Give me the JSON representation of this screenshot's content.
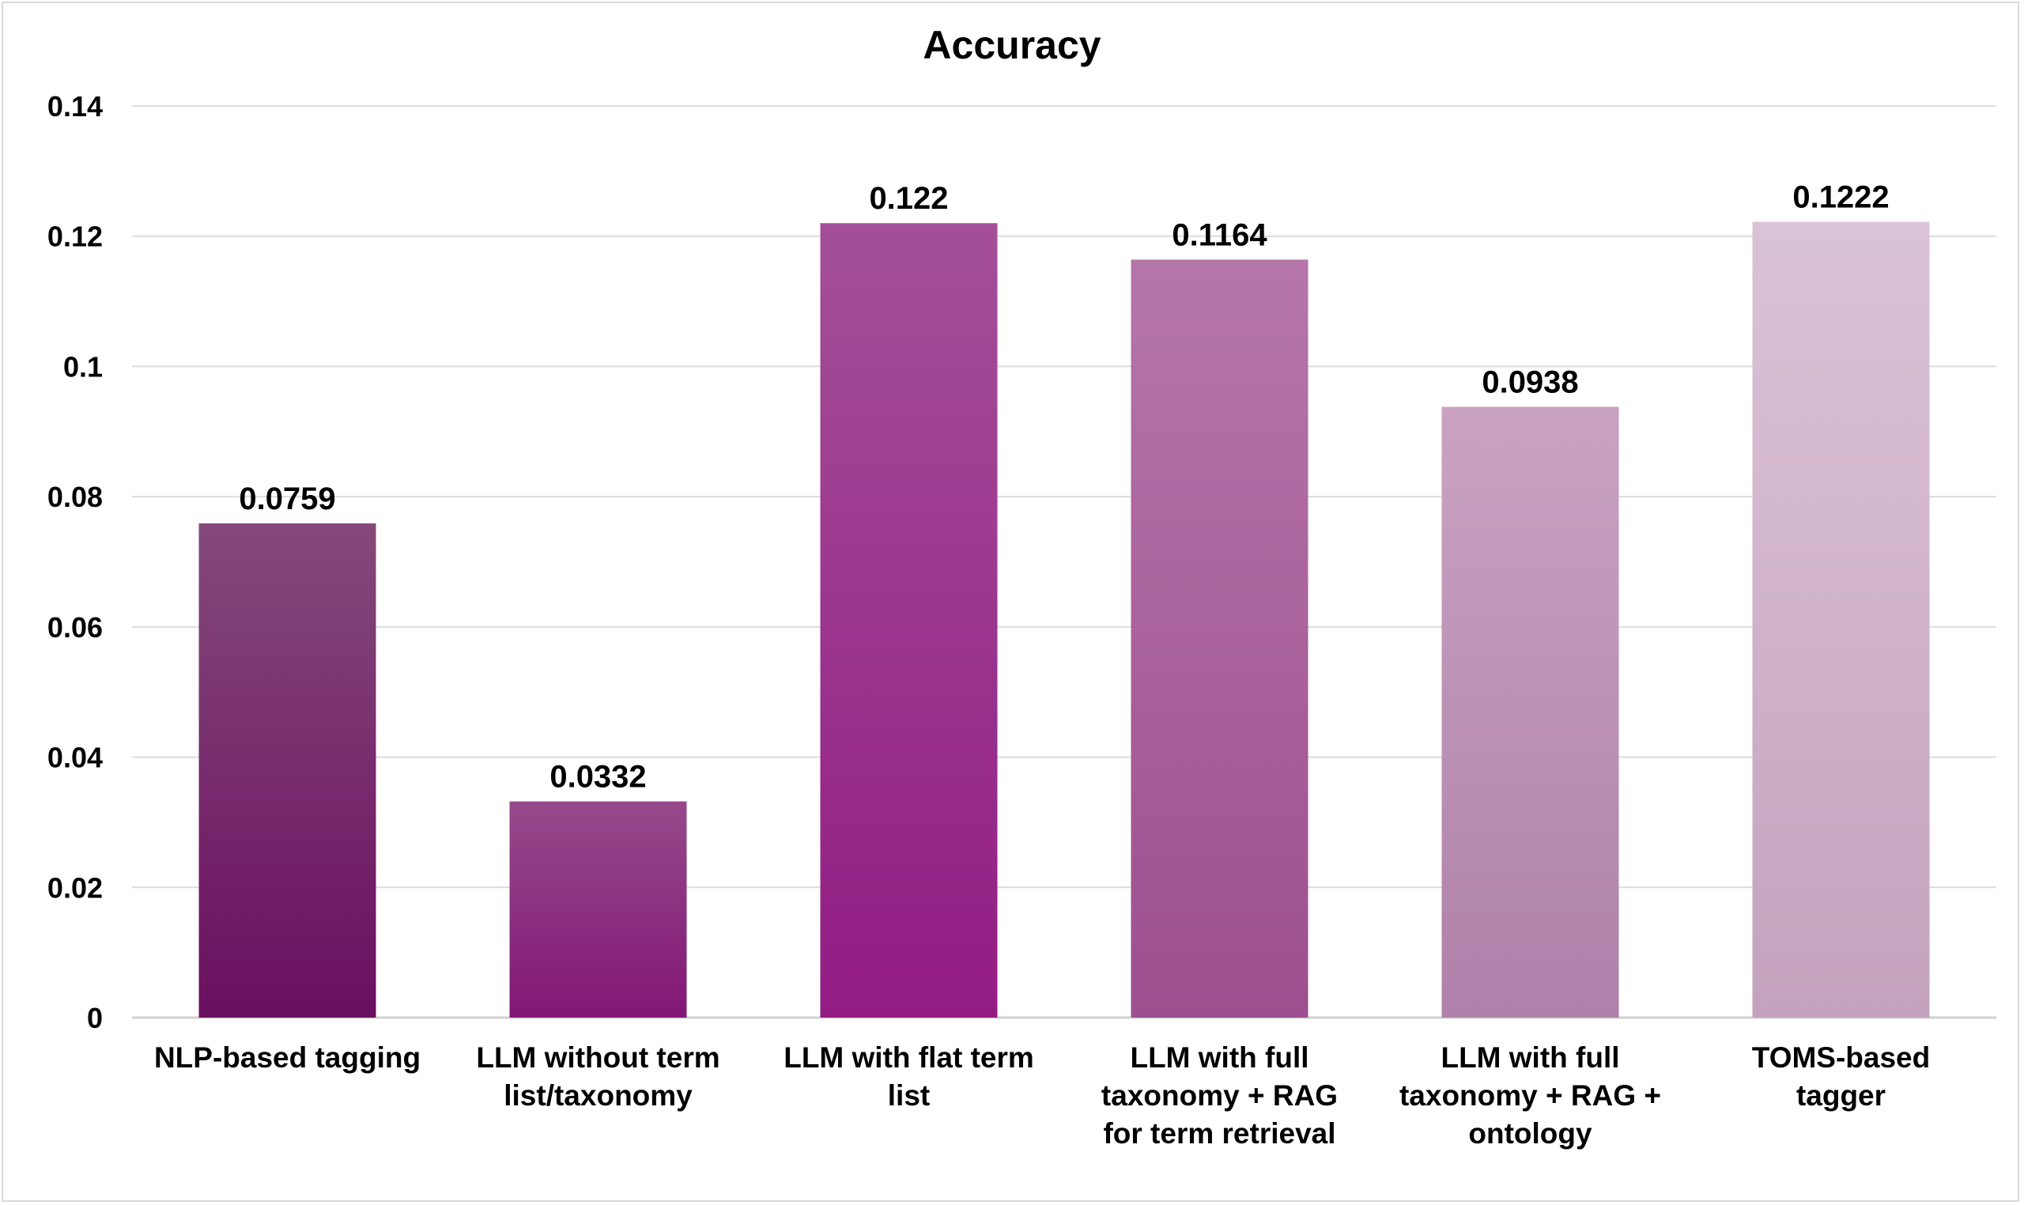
{
  "chart_data": {
    "type": "bar",
    "title": "Accuracy",
    "xlabel": "",
    "ylabel": "",
    "ylim": [
      0,
      0.14
    ],
    "yticks": [
      "0",
      "0.02",
      "0.04",
      "0.06",
      "0.08",
      "0.1",
      "0.12",
      "0.14"
    ],
    "grid": true,
    "categories": [
      "NLP-based tagging",
      "LLM without term list/taxonomy",
      "LLM with flat term list",
      "LLM with full taxonomy + RAG for term retrieval",
      "LLM with full taxonomy + RAG + ontology",
      "TOMS-based tagger"
    ],
    "category_lines": [
      [
        "NLP-based tagging"
      ],
      [
        "LLM without term",
        "list/taxonomy"
      ],
      [
        "LLM with flat term",
        "list"
      ],
      [
        "LLM with full",
        "taxonomy + RAG",
        "for term retrieval"
      ],
      [
        "LLM with full",
        "taxonomy + RAG +",
        "ontology"
      ],
      [
        "TOMS-based",
        "tagger"
      ]
    ],
    "values": [
      0.0759,
      0.0332,
      0.122,
      0.1164,
      0.0938,
      0.1222
    ],
    "data_labels": [
      "0.0759",
      "0.0332",
      "0.122",
      "0.1164",
      "0.0938",
      "0.1222"
    ],
    "colors": [
      [
        "#84497a",
        "#6a0f60"
      ],
      [
        "#964a8a",
        "#821776"
      ],
      [
        "#a44f98",
        "#921c84"
      ],
      [
        "#b676a9",
        "#9c4f90"
      ],
      [
        "#c9a2c3",
        "#b081aa"
      ],
      [
        "#dbc3d7",
        "#c4a2bd"
      ]
    ]
  }
}
